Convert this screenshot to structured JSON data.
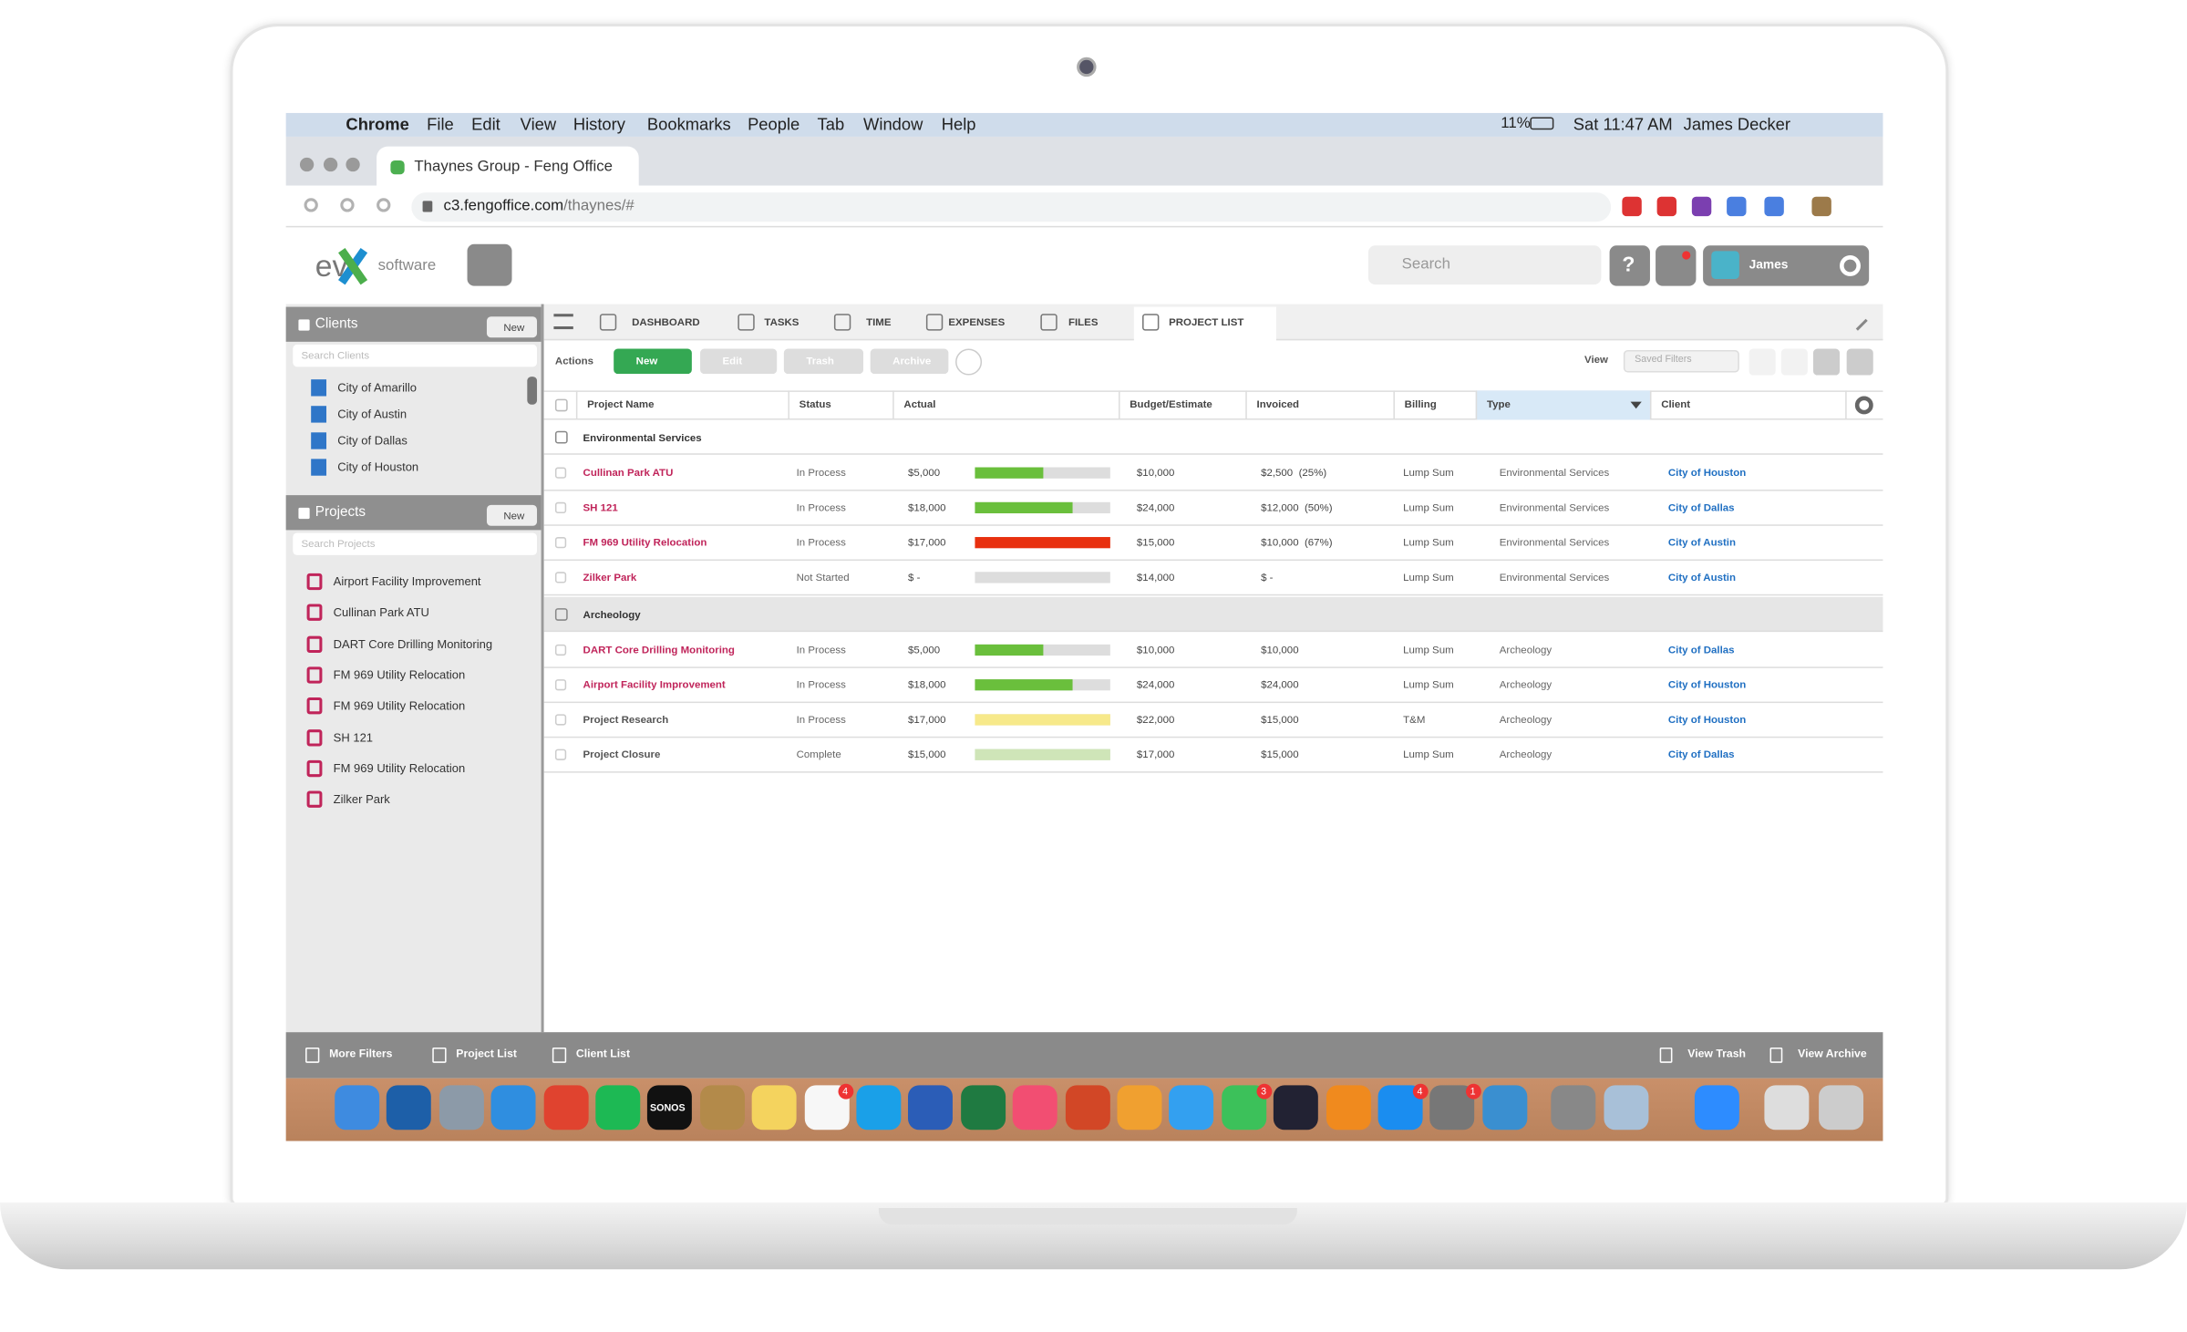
{
  "menubar": {
    "app": "Chrome",
    "menus": [
      "File",
      "Edit",
      "View",
      "History",
      "Bookmarks",
      "People",
      "Tab",
      "Window",
      "Help"
    ],
    "battery": "11%",
    "clock": "Sat 11:47 AM",
    "user": "James Decker"
  },
  "browser": {
    "tab_title": "Thaynes Group - Feng Office",
    "url_host": "c3.fengoffice.com",
    "url_path": "/thaynes/#"
  },
  "app_header": {
    "logo_ev": "ev",
    "logo_software": "software",
    "search_placeholder": "Search",
    "help": "?",
    "user": "James"
  },
  "sidebar": {
    "clients": {
      "title": "Clients",
      "new": "New",
      "search": "Search Clients",
      "items": [
        "City of Amarillo",
        "City of Austin",
        "City of Dallas",
        "City of Houston"
      ]
    },
    "projects": {
      "title": "Projects",
      "new": "New",
      "search": "Search Projects",
      "items": [
        "Airport Facility Improvement",
        "Cullinan Park ATU",
        "DART Core Drilling Monitoring",
        "FM 969 Utility Relocation",
        "FM 969 Utility Relocation",
        "SH 121",
        "FM 969 Utility Relocation",
        "Zilker Park"
      ]
    }
  },
  "tabs": [
    "DASHBOARD",
    "TASKS",
    "TIME",
    "EXPENSES",
    "FILES",
    "PROJECT LIST"
  ],
  "toolbar": {
    "actions": "Actions",
    "buttons": [
      "New",
      "Edit",
      "Trash",
      "Archive"
    ],
    "view": "View",
    "saved_filters": "Saved Filters"
  },
  "table": {
    "columns": [
      "Project Name",
      "Status",
      "Actual",
      "Budget/Estimate",
      "Invoiced",
      "Billing",
      "Type",
      "Client"
    ],
    "groups": [
      {
        "name": "Environmental Services",
        "rows": [
          {
            "name": "Cullinan Park ATU",
            "name_color": "#c0245a",
            "status": "In Process",
            "actual": "$5,000",
            "progress": 50,
            "bar_color": "#6abf3c",
            "budget": "$10,000",
            "invoiced": "$2,500  (25%)",
            "billing": "Lump Sum",
            "type": "Environmental Services",
            "client": "City of Houston"
          },
          {
            "name": "SH 121",
            "name_color": "#c0245a",
            "status": "In Process",
            "actual": "$18,000",
            "progress": 72,
            "bar_color": "#6abf3c",
            "budget": "$24,000",
            "invoiced": "$12,000  (50%)",
            "billing": "Lump Sum",
            "type": "Environmental Services",
            "client": "City of Dallas"
          },
          {
            "name": "FM 969 Utility Relocation",
            "name_color": "#c0245a",
            "status": "In Process",
            "actual": "$17,000",
            "progress": 100,
            "bar_color": "#e8300f",
            "budget": "$15,000",
            "invoiced": "$10,000  (67%)",
            "billing": "Lump Sum",
            "type": "Environmental Services",
            "client": "City of Austin"
          },
          {
            "name": "Zilker Park",
            "name_color": "#c0245a",
            "status": "Not Started",
            "actual": "$ -",
            "progress": 0,
            "bar_color": "#6abf3c",
            "budget": "$14,000",
            "invoiced": "$ -",
            "billing": "Lump Sum",
            "type": "Environmental Services",
            "client": "City of Austin"
          }
        ]
      },
      {
        "name": "Archeology",
        "rows": [
          {
            "name": "DART Core Drilling Monitoring",
            "name_color": "#c0245a",
            "status": "In Process",
            "actual": "$5,000",
            "progress": 50,
            "bar_color": "#6abf3c",
            "budget": "$10,000",
            "invoiced": "$10,000",
            "billing": "Lump Sum",
            "type": "Archeology",
            "client": "City of Dallas"
          },
          {
            "name": "Airport Facility Improvement",
            "name_color": "#c0245a",
            "status": "In Process",
            "actual": "$18,000",
            "progress": 72,
            "bar_color": "#6abf3c",
            "budget": "$24,000",
            "invoiced": "$24,000",
            "billing": "Lump Sum",
            "type": "Archeology",
            "client": "City of Houston"
          },
          {
            "name": "Project Research",
            "name_color": "#555555",
            "status": "In Process",
            "actual": "$17,000",
            "progress": 100,
            "bar_color": "#f7e98a",
            "budget": "$22,000",
            "invoiced": "$15,000",
            "billing": "T&M",
            "type": "Archeology",
            "client": "City of Houston"
          },
          {
            "name": "Project Closure",
            "name_color": "#555555",
            "status": "Complete",
            "actual": "$15,000",
            "progress": 100,
            "bar_color": "#cfe5b8",
            "budget": "$17,000",
            "invoiced": "$15,000",
            "billing": "Lump Sum",
            "type": "Archeology",
            "client": "City of Dallas"
          }
        ]
      }
    ]
  },
  "footer": {
    "left": [
      "More Filters",
      "Project List",
      "Client List"
    ],
    "right": [
      "View Trash",
      "View Archive"
    ]
  },
  "dock": {
    "sonos": "SONOS",
    "badges": [
      "4",
      "3",
      "4",
      "1"
    ]
  }
}
